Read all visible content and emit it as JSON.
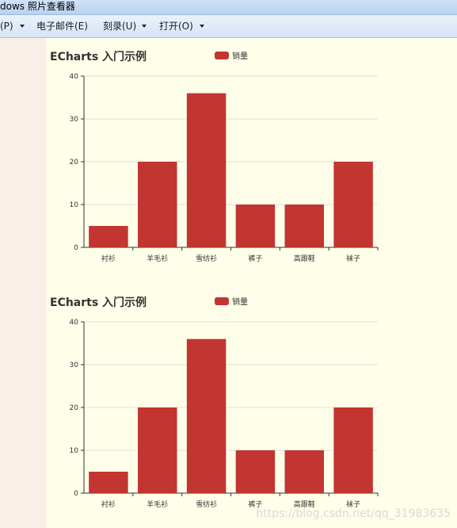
{
  "window": {
    "title": "dows 照片查看器"
  },
  "menu": {
    "items": [
      {
        "label": "(P)",
        "has_arrow": true
      },
      {
        "label": "电子邮件(E)",
        "has_arrow": false
      },
      {
        "label": "刻录(U)",
        "has_arrow": true
      },
      {
        "label": "打开(O)",
        "has_arrow": true
      }
    ]
  },
  "chart_data": [
    {
      "type": "bar",
      "title": "ECharts 入门示例",
      "series": [
        {
          "name": "销量",
          "values": [
            5,
            20,
            36,
            10,
            10,
            20
          ],
          "color": "#c23531"
        }
      ],
      "categories": [
        "衬衫",
        "羊毛衫",
        "雪纺衫",
        "裤子",
        "高跟鞋",
        "袜子"
      ],
      "yticks": [
        "0",
        "10",
        "20",
        "30",
        "40"
      ],
      "ylim": [
        0,
        40
      ],
      "grid": true,
      "legend": "top-center"
    },
    {
      "type": "bar",
      "title": "ECharts 入门示例",
      "series": [
        {
          "name": "销量",
          "values": [
            5,
            20,
            36,
            10,
            10,
            20
          ],
          "color": "#c23531"
        }
      ],
      "categories": [
        "衬衫",
        "羊毛衫",
        "雪纺衫",
        "裤子",
        "高跟鞋",
        "袜子"
      ],
      "yticks": [
        "0",
        "10",
        "20",
        "30",
        "40"
      ],
      "ylim": [
        0,
        40
      ],
      "grid": true,
      "legend": "top-center"
    }
  ],
  "watermark": "https://blog.csdn.net/qq_31983635"
}
